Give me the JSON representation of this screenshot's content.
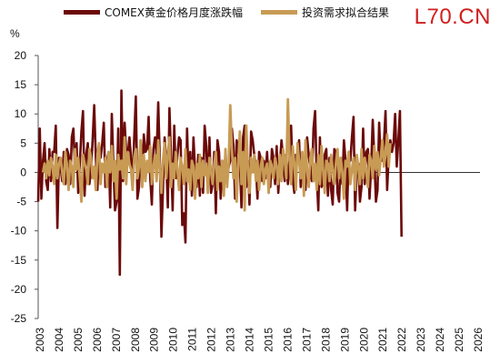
{
  "watermark": "L70.CN",
  "chart_data": {
    "type": "line",
    "unit": "%",
    "ylim": [
      -25,
      20
    ],
    "yticks": [
      20,
      15,
      10,
      5,
      0,
      -5,
      -10,
      -15,
      -20,
      -25
    ],
    "xlim": [
      2003,
      2026
    ],
    "x_tick_labels": [
      "2003",
      "2004",
      "2005",
      "2006",
      "2007",
      "2008",
      "2009",
      "2010",
      "2011",
      "2012",
      "2013",
      "2014",
      "2015",
      "2016",
      "2017",
      "2018",
      "2019",
      "2020",
      "2021",
      "2022",
      "2023",
      "2024",
      "2025",
      "2026"
    ],
    "legend_position": "top",
    "grid": false,
    "series": [
      {
        "name": "COMEX黄金价格月度涨跌幅",
        "color": "#6b0a0a",
        "x_start": 2003.0,
        "x_step": 0.08333,
        "values": [
          -5.0,
          7.5,
          -4.5,
          2.0,
          5.0,
          -1.5,
          -3.0,
          4.0,
          -1.5,
          3.5,
          3.5,
          8.0,
          -9.5,
          2.5,
          1.0,
          -1.5,
          3.5,
          -2.0,
          4.0,
          3.0,
          -2.0,
          6.0,
          7.5,
          0.5,
          5.0,
          -3.5,
          1.5,
          7.0,
          10.5,
          -4.0,
          3.0,
          5.0,
          -2.0,
          0.5,
          5.5,
          11.5,
          2.5,
          -3.0,
          4.0,
          2.5,
          5.0,
          8.5,
          -2.5,
          2.0,
          3.5,
          -6.0,
          10.0,
          1.0,
          -6.5,
          -5.0,
          7.5,
          -17.5,
          14.0,
          -1.5,
          8.5,
          3.5,
          3.0,
          6.0,
          2.5,
          -2.0,
          6.0,
          13.0,
          -4.5,
          -2.5,
          5.5,
          -2.0,
          6.5,
          3.5,
          4.0,
          9.5,
          -1.0,
          -5.5,
          4.0,
          6.0,
          3.0,
          12.0,
          2.0,
          -11.0,
          -2.5,
          6.0,
          2.0,
          -6.0,
          11.0,
          2.5,
          -6.5,
          8.0,
          -1.0,
          3.0,
          6.0,
          5.5,
          -9.0,
          -7.0,
          -12.0,
          7.5,
          -1.5,
          3.5,
          -4.0,
          6.0,
          0.5,
          -2.5,
          3.0,
          -4.0,
          2.5,
          -3.5,
          8.0,
          4.5,
          -2.5,
          6.0,
          -3.5,
          -2.0,
          3.5,
          -7.0,
          5.5,
          3.5,
          -4.5,
          2.0,
          -3.0,
          3.5,
          -1.5,
          1.0,
          2.0,
          7.5,
          4.5,
          -4.5,
          5.5,
          4.0,
          1.5,
          -6.0,
          6.0,
          8.0,
          -2.5,
          2.0,
          -5.5,
          7.0,
          5.5,
          3.0,
          1.0,
          -4.5,
          3.5,
          2.5,
          -1.5,
          2.0,
          -1.0,
          3.5,
          -2.0,
          -2.5,
          4.0,
          2.5,
          -2.0,
          4.5,
          -3.5,
          1.5,
          5.5,
          2.5,
          -1.5,
          3.0,
          -2.0,
          2.0,
          8.0,
          -1.0,
          -3.5,
          3.0,
          2.0,
          5.5,
          -2.5,
          2.0,
          0.5,
          -3.0,
          6.0,
          3.0,
          0.5,
          -1.5,
          7.5,
          10.5,
          -0.5,
          -6.5,
          6.0,
          -2.5,
          -2.0,
          3.0,
          4.0,
          -4.0,
          2.5,
          -3.0,
          -5.5,
          4.0,
          3.5,
          -3.5,
          -5.0,
          2.5,
          -2.0,
          5.5,
          2.0,
          -6.5,
          3.5,
          2.0,
          6.0,
          9.5,
          -6.5,
          0.5,
          1.5,
          -5.0,
          -2.5,
          7.5,
          -2.0,
          3.5,
          4.0,
          -4.5,
          1.0,
          9.0,
          2.5,
          -5.0,
          -3.0,
          8.5,
          2.0,
          2.0,
          5.0,
          10.5,
          -3.0,
          3.0,
          5.5,
          3.5,
          5.0,
          10.0,
          1.0,
          5.5,
          10.5,
          -11.0
        ]
      },
      {
        "name": "投资需求拟合结果",
        "color": "#c89b55",
        "x_start": 2003.25,
        "x_step": 0.08333,
        "values": [
          0.0,
          1.5,
          -1.0,
          2.0,
          -0.5,
          2.5,
          1.0,
          -2.0,
          3.0,
          -1.0,
          1.5,
          2.5,
          0.0,
          -2.0,
          3.5,
          1.0,
          -3.0,
          2.0,
          1.0,
          -2.5,
          4.0,
          0.5,
          2.5,
          -1.0,
          -5.0,
          3.0,
          1.5,
          0.5,
          -2.0,
          4.0,
          2.5,
          -1.0,
          1.0,
          -3.0,
          3.0,
          5.0,
          -2.0,
          1.5,
          0.0,
          2.5,
          -2.5,
          3.5,
          0.0,
          4.5,
          -1.5,
          2.0,
          -4.5,
          3.0,
          0.5,
          2.0,
          -1.0,
          6.0,
          -2.0,
          3.5,
          1.5,
          0.5,
          -3.0,
          2.5,
          4.0,
          -1.0,
          1.0,
          5.5,
          -2.5,
          3.0,
          -1.5,
          2.0,
          0.0,
          4.5,
          -2.0,
          1.0,
          3.0,
          -1.5,
          5.5,
          0.5,
          -3.5,
          2.0,
          5.0,
          -1.0,
          3.0,
          6.0,
          -2.5,
          1.5,
          -1.0,
          3.5,
          0.5,
          -3.0,
          2.5,
          1.0,
          -2.0,
          4.0,
          -1.5,
          0.5,
          -3.0,
          2.0,
          1.0,
          -4.5,
          1.5,
          -1.0,
          3.0,
          -2.5,
          2.0,
          -0.5,
          1.5,
          -3.5,
          2.5,
          0.0,
          -2.0,
          1.5,
          3.5,
          -3.0,
          1.0,
          -1.5,
          2.0,
          -4.0,
          4.0,
          -2.5,
          1.5,
          11.5,
          4.0,
          -1.0,
          2.5,
          -5.0,
          1.5,
          7.0,
          -2.0,
          3.5,
          -6.5,
          8.0,
          1.0,
          -3.5,
          2.5,
          0.0,
          3.0,
          -1.5,
          2.0,
          -3.0,
          1.0,
          2.5,
          -2.0,
          0.5,
          1.5,
          -3.5,
          2.0,
          0.5,
          -1.0,
          2.5,
          1.0,
          -2.0,
          3.0,
          -1.5,
          4.0,
          2.0,
          -1.0,
          12.5,
          3.0,
          -2.0,
          4.5,
          1.5,
          -3.0,
          5.0,
          2.0,
          -1.0,
          3.5,
          -4.0,
          5.5,
          0.5,
          -2.5,
          2.5,
          4.0,
          -1.5,
          1.5,
          -3.0,
          3.0,
          -2.0,
          4.5,
          0.5,
          -3.5,
          2.0,
          1.5,
          -1.5,
          3.0,
          0.5,
          -2.0,
          1.5,
          4.0,
          -1.0,
          2.5,
          0.0,
          -4.5,
          2.0,
          1.0,
          3.5,
          -2.0,
          0.5,
          2.5,
          -3.0,
          3.0,
          1.0,
          -2.0,
          4.0,
          -1.0,
          2.5,
          0.0,
          -2.5,
          3.0,
          2.0,
          -1.0,
          4.5,
          0.5,
          3.5,
          -0.5,
          2.5,
          5.5,
          1.0,
          3.0,
          6.5,
          1.0,
          5.0
        ]
      }
    ]
  }
}
